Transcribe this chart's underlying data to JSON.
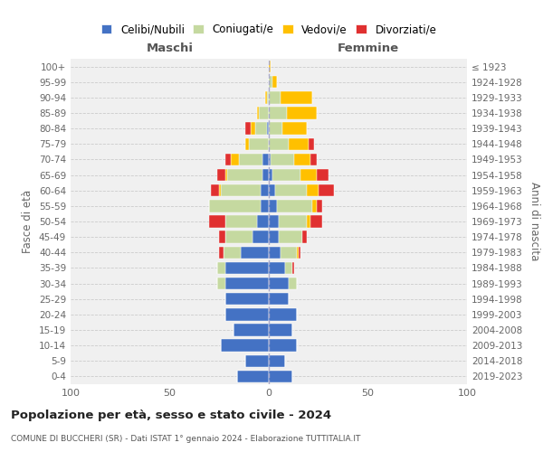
{
  "age_groups": [
    "0-4",
    "5-9",
    "10-14",
    "15-19",
    "20-24",
    "25-29",
    "30-34",
    "35-39",
    "40-44",
    "45-49",
    "50-54",
    "55-59",
    "60-64",
    "65-69",
    "70-74",
    "75-79",
    "80-84",
    "85-89",
    "90-94",
    "95-99",
    "100+"
  ],
  "birth_years": [
    "2019-2023",
    "2014-2018",
    "2009-2013",
    "2004-2008",
    "1999-2003",
    "1994-1998",
    "1989-1993",
    "1984-1988",
    "1979-1983",
    "1974-1978",
    "1969-1973",
    "1964-1968",
    "1959-1963",
    "1954-1958",
    "1949-1953",
    "1944-1948",
    "1939-1943",
    "1934-1938",
    "1929-1933",
    "1924-1928",
    "≤ 1923"
  ],
  "males": {
    "celibi": [
      16,
      12,
      24,
      18,
      22,
      22,
      22,
      22,
      14,
      8,
      6,
      4,
      4,
      3,
      3,
      0,
      1,
      0,
      0,
      0,
      0
    ],
    "coniugati": [
      0,
      0,
      0,
      0,
      0,
      0,
      4,
      4,
      9,
      14,
      16,
      26,
      20,
      18,
      12,
      10,
      6,
      5,
      1,
      0,
      0
    ],
    "vedovi": [
      0,
      0,
      0,
      0,
      0,
      0,
      0,
      0,
      0,
      0,
      0,
      0,
      1,
      1,
      4,
      2,
      2,
      1,
      1,
      0,
      0
    ],
    "divorziati": [
      0,
      0,
      0,
      0,
      0,
      0,
      0,
      0,
      2,
      3,
      8,
      0,
      4,
      4,
      3,
      0,
      3,
      0,
      0,
      0,
      0
    ]
  },
  "females": {
    "nubili": [
      12,
      8,
      14,
      12,
      14,
      10,
      10,
      8,
      6,
      5,
      5,
      4,
      3,
      2,
      1,
      0,
      0,
      0,
      0,
      0,
      0
    ],
    "coniugate": [
      0,
      0,
      0,
      0,
      0,
      0,
      4,
      4,
      8,
      12,
      14,
      18,
      16,
      14,
      12,
      10,
      7,
      9,
      6,
      2,
      0
    ],
    "vedove": [
      0,
      0,
      0,
      0,
      0,
      0,
      0,
      0,
      1,
      0,
      2,
      2,
      6,
      8,
      8,
      10,
      12,
      15,
      16,
      2,
      1
    ],
    "divorziate": [
      0,
      0,
      0,
      0,
      0,
      0,
      0,
      1,
      1,
      2,
      6,
      3,
      8,
      6,
      3,
      3,
      0,
      0,
      0,
      0,
      0
    ]
  },
  "colors": {
    "celibi": "#4472c4",
    "coniugati": "#c5d9a0",
    "vedovi": "#ffc000",
    "divorziati": "#e03030"
  },
  "title": "Popolazione per età, sesso e stato civile - 2024",
  "subtitle": "COMUNE DI BUCCHERI (SR) - Dati ISTAT 1° gennaio 2024 - Elaborazione TUTTITALIA.IT",
  "xlabel_left": "Maschi",
  "xlabel_right": "Femmine",
  "ylabel_left": "Fasce di età",
  "ylabel_right": "Anni di nascita",
  "xlim": 100,
  "legend_labels": [
    "Celibi/Nubili",
    "Coniugati/e",
    "Vedovi/e",
    "Divorziati/e"
  ],
  "bg_color": "#ffffff",
  "plot_bg_color": "#f0f0f0",
  "grid_color": "#cccccc"
}
